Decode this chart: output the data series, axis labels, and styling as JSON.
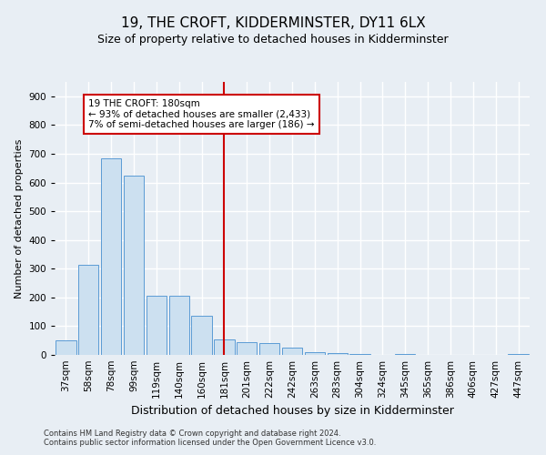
{
  "title": "19, THE CROFT, KIDDERMINSTER, DY11 6LX",
  "subtitle": "Size of property relative to detached houses in Kidderminster",
  "xlabel": "Distribution of detached houses by size in Kidderminster",
  "ylabel": "Number of detached properties",
  "footer_lines": [
    "Contains HM Land Registry data © Crown copyright and database right 2024.",
    "Contains public sector information licensed under the Open Government Licence v3.0."
  ],
  "categories": [
    "37sqm",
    "58sqm",
    "78sqm",
    "99sqm",
    "119sqm",
    "140sqm",
    "160sqm",
    "181sqm",
    "201sqm",
    "222sqm",
    "242sqm",
    "263sqm",
    "283sqm",
    "304sqm",
    "324sqm",
    "345sqm",
    "365sqm",
    "386sqm",
    "406sqm",
    "427sqm",
    "447sqm"
  ],
  "values": [
    50,
    315,
    685,
    625,
    205,
    205,
    135,
    55,
    45,
    40,
    25,
    8,
    5,
    2,
    0,
    2,
    0,
    0,
    0,
    0,
    2
  ],
  "bar_color": "#cce0f0",
  "bar_edge_color": "#5b9bd5",
  "highlight_index": 7,
  "highlight_color": "#cc0000",
  "ylim": [
    0,
    950
  ],
  "yticks": [
    0,
    100,
    200,
    300,
    400,
    500,
    600,
    700,
    800,
    900
  ],
  "annotation_text": "19 THE CROFT: 180sqm\n← 93% of detached houses are smaller (2,433)\n7% of semi-detached houses are larger (186) →",
  "annotation_box_color": "#ffffff",
  "annotation_box_edge": "#cc0000",
  "bg_color": "#e8eef4",
  "plot_bg_color": "#e8eef4",
  "grid_color": "#ffffff",
  "title_fontsize": 11,
  "subtitle_fontsize": 9,
  "xlabel_fontsize": 9,
  "ylabel_fontsize": 8,
  "tick_fontsize": 7.5,
  "annot_fontsize": 7.5
}
